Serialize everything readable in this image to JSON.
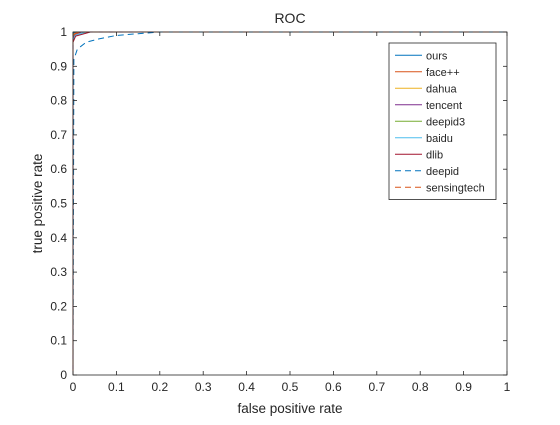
{
  "chart_data": {
    "type": "line",
    "title": "ROC",
    "xlabel": "false positive rate",
    "ylabel": "true positive rate",
    "xlim": [
      0,
      1
    ],
    "ylim": [
      0,
      1
    ],
    "xticks": [
      "0",
      "0.1",
      "0.2",
      "0.3",
      "0.4",
      "0.5",
      "0.6",
      "0.7",
      "0.8",
      "0.9",
      "1"
    ],
    "yticks": [
      "0",
      "0.1",
      "0.2",
      "0.3",
      "0.4",
      "0.5",
      "0.6",
      "0.7",
      "0.8",
      "0.9",
      "1"
    ],
    "grid": false,
    "legend_position": "top-right",
    "series": [
      {
        "name": "ours",
        "color": "#0072bd",
        "dash": "solid",
        "x": [
          0,
          0,
          0.002,
          0.01,
          1
        ],
        "y": [
          0,
          0.99,
          0.997,
          1,
          1
        ]
      },
      {
        "name": "face++",
        "color": "#d95319",
        "dash": "solid",
        "x": [
          0,
          0,
          0.003,
          0.015,
          1
        ],
        "y": [
          0,
          0.985,
          0.995,
          1,
          1
        ]
      },
      {
        "name": "dahua",
        "color": "#edb120",
        "dash": "solid",
        "x": [
          0,
          0,
          0.003,
          0.02,
          1
        ],
        "y": [
          0,
          0.985,
          0.995,
          1,
          1
        ]
      },
      {
        "name": "tencent",
        "color": "#7e2f8e",
        "dash": "solid",
        "x": [
          0,
          0,
          0.004,
          0.02,
          1
        ],
        "y": [
          0,
          0.98,
          0.993,
          1,
          1
        ]
      },
      {
        "name": "deepid3",
        "color": "#77ac30",
        "dash": "solid",
        "x": [
          0,
          0,
          0.005,
          0.03,
          1
        ],
        "y": [
          0,
          0.975,
          0.99,
          1,
          1
        ]
      },
      {
        "name": "baidu",
        "color": "#4dbeee",
        "dash": "solid",
        "x": [
          0,
          0,
          0.005,
          0.03,
          1
        ],
        "y": [
          0,
          0.975,
          0.99,
          1,
          1
        ]
      },
      {
        "name": "dlib",
        "color": "#a2142f",
        "dash": "solid",
        "x": [
          0,
          0,
          0.006,
          0.04,
          1
        ],
        "y": [
          0,
          0.97,
          0.988,
          1,
          1
        ]
      },
      {
        "name": "deepid",
        "color": "#0072bd",
        "dash": "dashed",
        "x": [
          0,
          0.002,
          0.01,
          0.03,
          0.06,
          0.1,
          0.15,
          0.2,
          1
        ],
        "y": [
          0,
          0.92,
          0.95,
          0.97,
          0.98,
          0.99,
          0.995,
          1,
          1
        ]
      },
      {
        "name": "sensingtech",
        "color": "#d95319",
        "dash": "dashed",
        "x": [
          0,
          0,
          0.004,
          0.02,
          1
        ],
        "y": [
          0,
          0.985,
          0.995,
          1,
          1
        ]
      }
    ]
  }
}
